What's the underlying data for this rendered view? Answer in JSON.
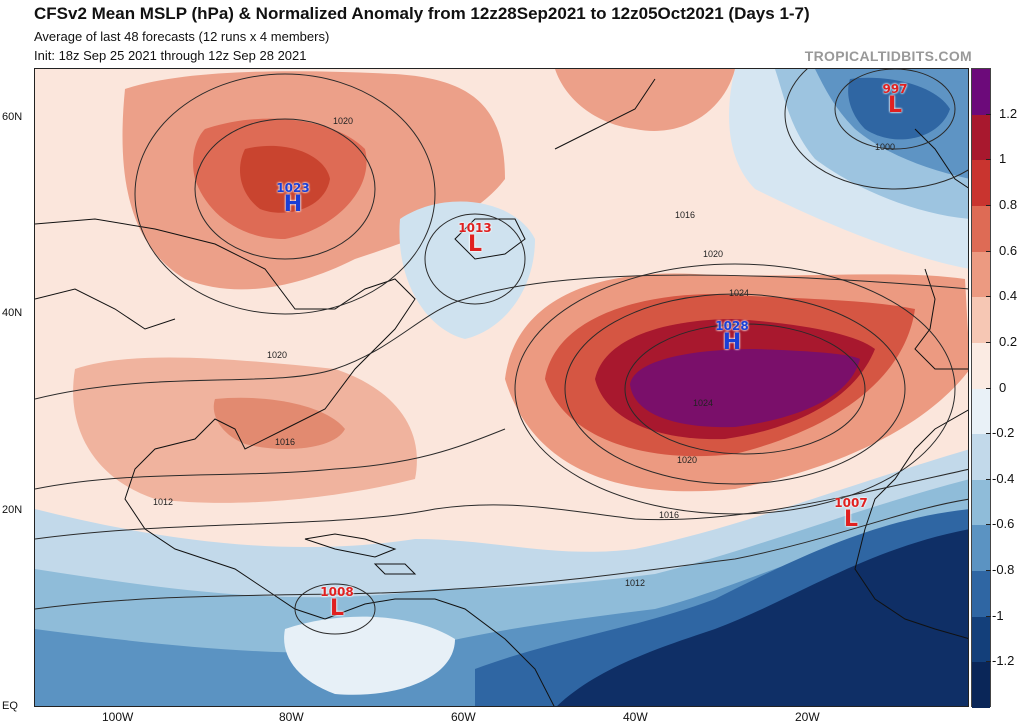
{
  "header": {
    "title": "CFSv2 Mean MSLP (hPa) & Normalized Anomaly from 12z28Sep2021 to 12z05Oct2021 (Days 1-7)",
    "subtitle1": "Average of last 48 forecasts (12 runs x 4 members)",
    "subtitle2": "Init: 18z Sep 25 2021 through 12z Sep 28 2021",
    "credit": "TROPICALTIDBITS.COM"
  },
  "axes": {
    "lat_labels": [
      "60N",
      "40N",
      "20N",
      "EQ"
    ],
    "lon_labels": [
      "100W",
      "80W",
      "60W",
      "40W",
      "20W"
    ]
  },
  "colorbar": {
    "ticks": [
      "1.2",
      "1",
      "0.8",
      "0.6",
      "0.4",
      "0.2",
      "0",
      "-0.2",
      "-0.4",
      "-0.6",
      "-0.8",
      "-1",
      "-1.2"
    ],
    "colors": [
      "#6c0a7a",
      "#a8182e",
      "#c9342f",
      "#de6b55",
      "#ec9a81",
      "#f6c7b4",
      "#fbebe3",
      "#e9f1f7",
      "#c2d9ea",
      "#8fbcd9",
      "#5b93c2",
      "#2f66a3",
      "#133f7a",
      "#0a2658"
    ]
  },
  "pressure_centers": [
    {
      "type": "H",
      "value": "1023"
    },
    {
      "type": "L",
      "value": "1013"
    },
    {
      "type": "H",
      "value": "1028"
    },
    {
      "type": "L",
      "value": "997"
    },
    {
      "type": "L",
      "value": "1007"
    },
    {
      "type": "L",
      "value": "1008"
    }
  ],
  "isobar_labels": [
    "1020",
    "1020",
    "1016",
    "1016",
    "1020",
    "1024",
    "1024",
    "1020",
    "1016",
    "1012",
    "1012",
    "1000"
  ]
}
